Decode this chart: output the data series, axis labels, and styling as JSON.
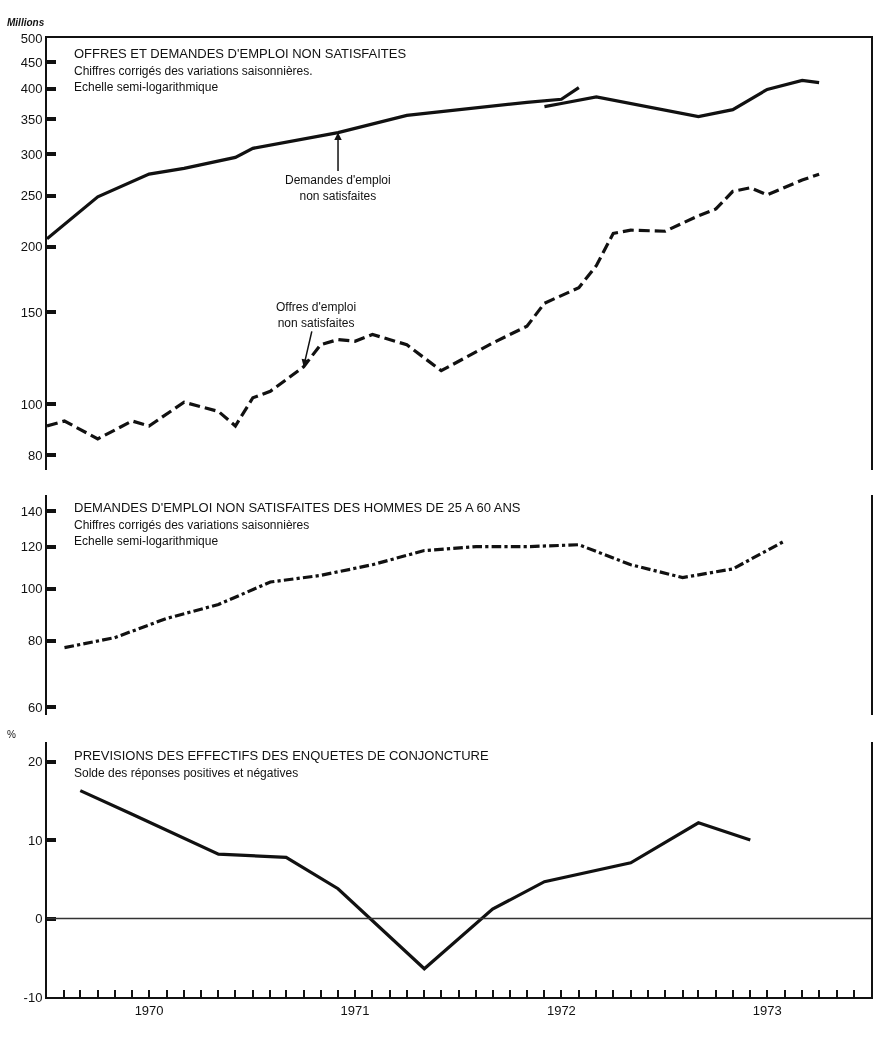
{
  "chart_data": [
    {
      "type": "line",
      "title": "OFFRES ET DEMANDES D'EMPLOI NON SATISFAITES",
      "subtitle": "Chiffres corrigés des variations saisonnières.\nEchelle semi-logarithmique",
      "ylabel": "Millions",
      "log": "y",
      "grid": false,
      "tick_labels": "y",
      "marker": "none",
      "xlim": [
        "1970-01-01",
        "1974-01-01"
      ],
      "ylim": [
        75,
        500
      ],
      "yticks": [
        80,
        100,
        150,
        200,
        250,
        300,
        350,
        400,
        450,
        500
      ],
      "annotations": [
        {
          "text": "Demandes d'emploi\nnon satisfaites",
          "x": "1971-06",
          "y": 330
        },
        {
          "text": "Offres d'emploi\nnon satisfaites",
          "x": "1971-04",
          "y": 118
        }
      ],
      "series": [
        {
          "color": "#111111",
          "line_style": "solid",
          "x": [
            "1970-01",
            "1970-04",
            "1970-07",
            "1970-09",
            "1970-12",
            "1971-01",
            "1971-06",
            "1971-10",
            "1972-05",
            "1972-07",
            "1972-08"
          ],
          "values": [
            207,
            249,
            275,
            282,
            296,
            308,
            330,
            356,
            377,
            382,
            402
          ]
        },
        {
          "color": "#111111",
          "line_style": "solid",
          "x": [
            "1972-06",
            "1972-07",
            "1972-09",
            "1973-03",
            "1973-05",
            "1973-07",
            "1973-09",
            "1973-10"
          ],
          "values": [
            370,
            375,
            386,
            354,
            365,
            399,
            415,
            411
          ]
        },
        {
          "color": "#111111",
          "line_style": "dashed",
          "x": [
            "1970-01",
            "1970-02",
            "1970-04",
            "1970-06",
            "1970-07",
            "1970-09",
            "1970-11",
            "1970-12",
            "1971-01",
            "1971-02",
            "1971-04",
            "1971-05",
            "1971-06",
            "1971-07",
            "1971-08",
            "1971-10",
            "1971-12",
            "1972-03",
            "1972-05",
            "1972-06",
            "1972-08",
            "1972-09",
            "1972-10",
            "1972-11",
            "1973-01",
            "1973-03",
            "1973-04",
            "1973-05",
            "1973-06",
            "1973-07",
            "1973-09",
            "1973-10"
          ],
          "values": [
            91,
            93,
            86,
            93,
            91,
            101,
            97,
            91,
            103,
            106,
            118,
            130,
            133,
            132,
            136,
            130,
            116,
            131,
            141,
            156,
            167,
            184,
            212,
            215,
            214,
            229,
            236,
            255,
            259,
            251,
            268,
            275
          ]
        }
      ]
    },
    {
      "type": "line",
      "title": "DEMANDES D'EMPLOI NON SATISFAITES DES HOMMES DE 25 A 60 ANS",
      "subtitle": "Chiffres corrigés des variations saisonnières\nEchelle semi-logarithmique",
      "log": "y",
      "grid": false,
      "tick_labels": "y",
      "marker": "none",
      "xlim": [
        "1970-01-01",
        "1974-01-01"
      ],
      "ylim": [
        58,
        150
      ],
      "yticks": [
        60,
        80,
        100,
        120,
        140
      ],
      "series": [
        {
          "color": "#111111",
          "line_style": "dashdot",
          "x": [
            "1970-02",
            "1970-05",
            "1970-08",
            "1970-11",
            "1971-02",
            "1971-05",
            "1971-08",
            "1971-11",
            "1972-02",
            "1972-05",
            "1972-08",
            "1972-11",
            "1973-02",
            "1973-05",
            "1973-08"
          ],
          "values": [
            77.6,
            81,
            88,
            93.5,
            103,
            106,
            111,
            118,
            120,
            120,
            121,
            111,
            105,
            109,
            123
          ]
        }
      ]
    },
    {
      "type": "line",
      "title": "PREVISIONS DES EFFECTIFS DES ENQUETES DE CONJONCTURE",
      "subtitle": "Solde des réponses positives et négatives",
      "ylabel": "%",
      "grid": false,
      "marker": "none",
      "xlim": [
        "1970-01-01",
        "1974-01-01"
      ],
      "ylim": [
        -10,
        22.5
      ],
      "yticks": [
        -10,
        0,
        10,
        20
      ],
      "xticks": [
        {
          "value": "1970-01-01",
          "label": null
        },
        {
          "value": "1970-02-01",
          "label": null
        },
        {
          "value": "1970-03-01",
          "label": null
        },
        {
          "value": "1970-04-01",
          "label": null
        },
        {
          "value": "1970-05-01",
          "label": null
        },
        {
          "value": "1970-06-01",
          "label": null
        },
        {
          "value": "1970-07-01",
          "label": "1970"
        },
        {
          "value": "1970-08-01",
          "label": null
        },
        {
          "value": "1970-09-01",
          "label": null
        },
        {
          "value": "1970-10-01",
          "label": null
        },
        {
          "value": "1970-11-01",
          "label": null
        },
        {
          "value": "1970-12-01",
          "label": null
        },
        {
          "value": "1971-01-01",
          "label": null
        },
        {
          "value": "1971-02-01",
          "label": null
        },
        {
          "value": "1971-03-01",
          "label": null
        },
        {
          "value": "1971-04-01",
          "label": null
        },
        {
          "value": "1971-05-01",
          "label": null
        },
        {
          "value": "1971-06-01",
          "label": null
        },
        {
          "value": "1971-07-01",
          "label": "1971"
        },
        {
          "value": "1971-08-01",
          "label": null
        },
        {
          "value": "1971-09-01",
          "label": null
        },
        {
          "value": "1971-10-01",
          "label": null
        },
        {
          "value": "1971-11-01",
          "label": null
        },
        {
          "value": "1971-12-01",
          "label": null
        },
        {
          "value": "1972-01-01",
          "label": null
        },
        {
          "value": "1972-02-01",
          "label": null
        },
        {
          "value": "1972-03-01",
          "label": null
        },
        {
          "value": "1972-04-01",
          "label": null
        },
        {
          "value": "1972-05-01",
          "label": null
        },
        {
          "value": "1972-06-01",
          "label": null
        },
        {
          "value": "1972-07-01",
          "label": "1972"
        },
        {
          "value": "1972-08-01",
          "label": null
        },
        {
          "value": "1972-09-01",
          "label": null
        },
        {
          "value": "1972-10-01",
          "label": null
        },
        {
          "value": "1972-11-01",
          "label": null
        },
        {
          "value": "1972-12-01",
          "label": null
        },
        {
          "value": "1973-01-01",
          "label": null
        },
        {
          "value": "1973-02-01",
          "label": null
        },
        {
          "value": "1973-03-01",
          "label": null
        },
        {
          "value": "1973-04-01",
          "label": null
        },
        {
          "value": "1973-05-01",
          "label": null
        },
        {
          "value": "1973-06-01",
          "label": null
        },
        {
          "value": "1973-07-01",
          "label": "1973"
        },
        {
          "value": "1973-08-01",
          "label": null
        },
        {
          "value": "1973-09-01",
          "label": null
        },
        {
          "value": "1973-10-01",
          "label": null
        },
        {
          "value": "1973-11-01",
          "label": null
        },
        {
          "value": "1973-12-01",
          "label": null
        }
      ],
      "ref_lines": [
        {
          "axis": "y",
          "value": 0,
          "color": "#333333"
        }
      ],
      "series": [
        {
          "color": "#111111",
          "line_style": "solid",
          "x": [
            "1970-03",
            "1970-06",
            "1970-11",
            "1971-03",
            "1971-06",
            "1971-11",
            "1972-03",
            "1972-06",
            "1972-11",
            "1973-03",
            "1973-06"
          ],
          "values": [
            16.3,
            13.3,
            8.2,
            7.8,
            3.8,
            -6.4,
            1.2,
            4.7,
            7.1,
            12.2,
            10
          ]
        }
      ]
    }
  ]
}
